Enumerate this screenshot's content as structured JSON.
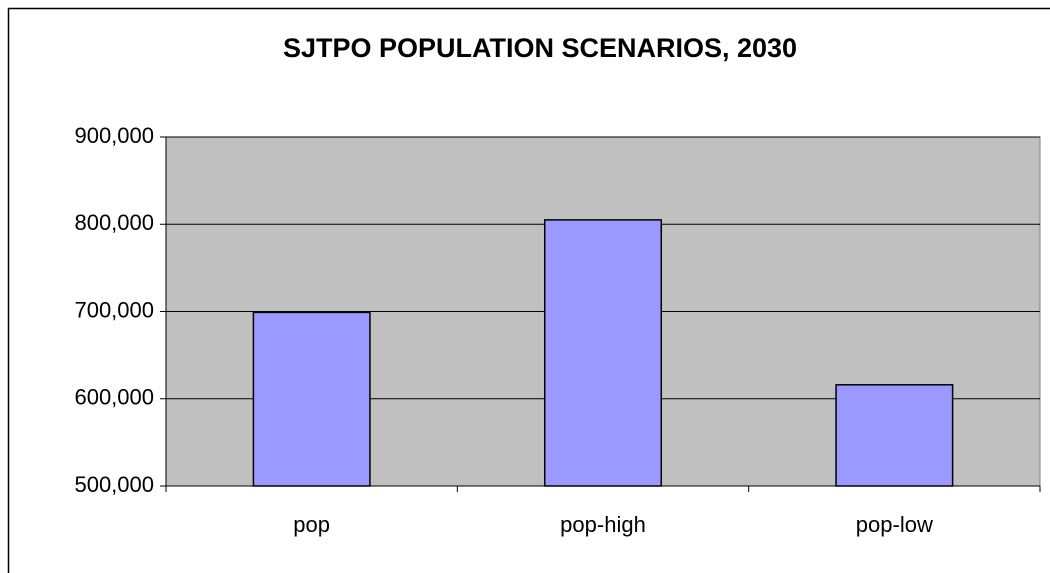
{
  "chart_data": {
    "type": "bar",
    "title": "SJTPO POPULATION SCENARIOS, 2030",
    "categories": [
      "pop",
      "pop-high",
      "pop-low"
    ],
    "values": [
      699000,
      805000,
      616000
    ],
    "color": "#9999ff",
    "ylim": [
      500000,
      900000
    ],
    "yticks": [
      {
        "value": 500000,
        "label": "500,000"
      },
      {
        "value": 600000,
        "label": "600,000"
      },
      {
        "value": 700000,
        "label": "700,000"
      },
      {
        "value": 800000,
        "label": "800,000"
      },
      {
        "value": 900000,
        "label": "900,000"
      }
    ],
    "grid": true
  }
}
